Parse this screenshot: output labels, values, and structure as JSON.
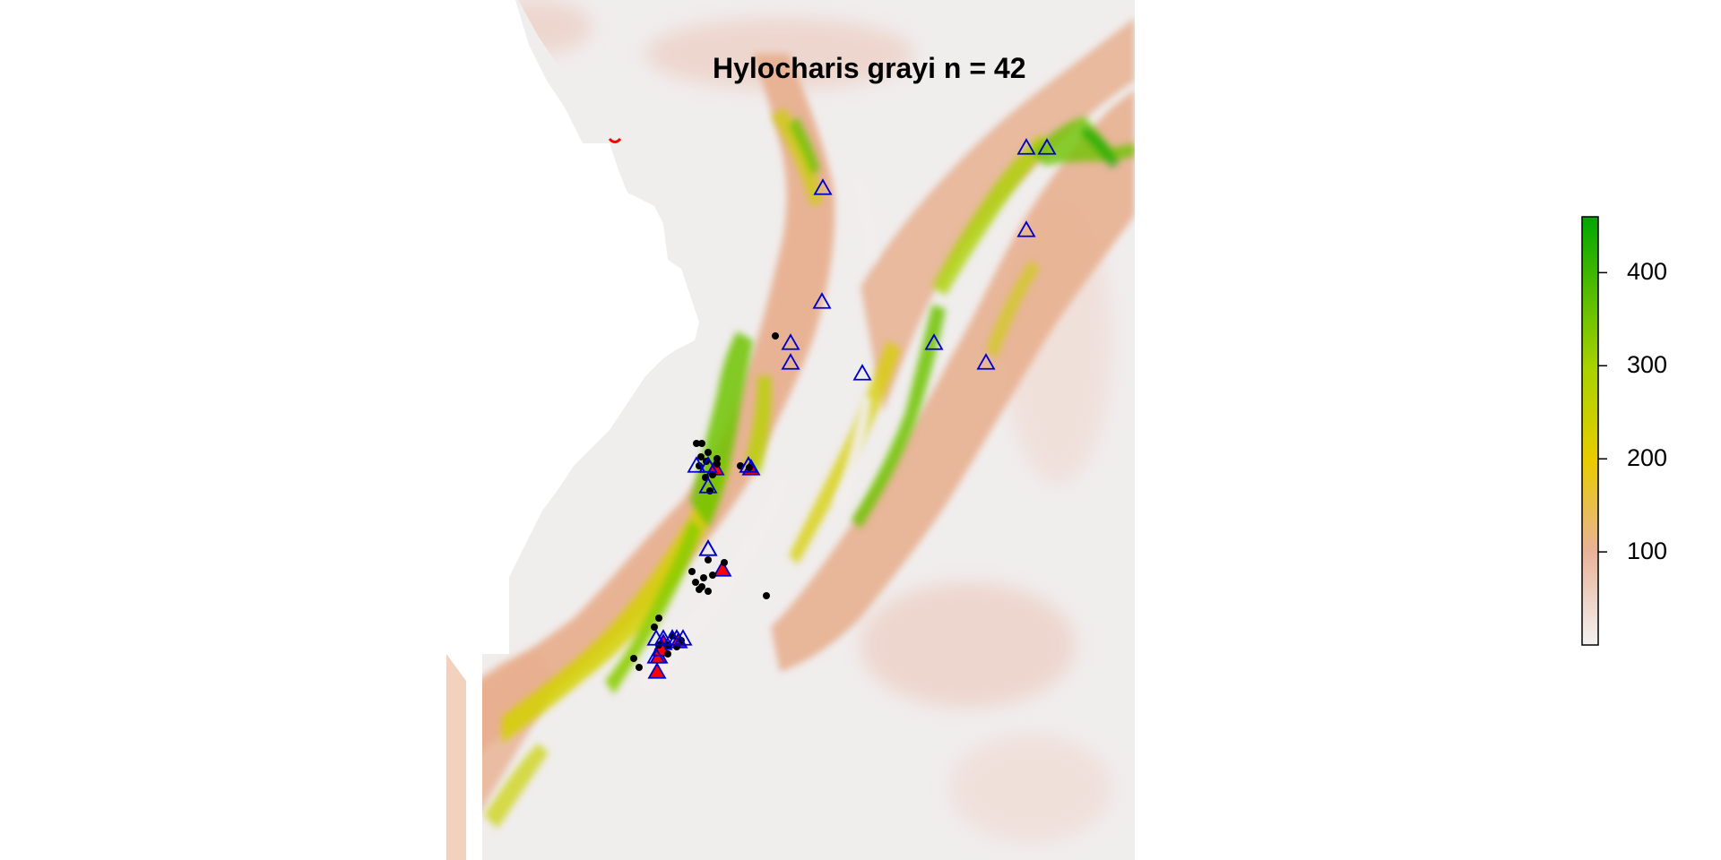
{
  "title": "Hylocharis grayi n = 42",
  "colors": {
    "low": "#f2f2f2",
    "mid_low": "#e9b298",
    "mid": "#e8cc00",
    "mid_high": "#a8d200",
    "high": "#00a600",
    "background_sea": "#ffffff",
    "triangle_outline": "#0000cc",
    "triangle_fill_red": "#ff0000",
    "dot": "#000000"
  },
  "legend": {
    "min": 0,
    "max": 460,
    "ticks": [
      {
        "value": 100,
        "label": "100"
      },
      {
        "value": 200,
        "label": "200"
      },
      {
        "value": 300,
        "label": "300"
      },
      {
        "value": 400,
        "label": "400"
      }
    ]
  },
  "markers": {
    "open_triangles": 24,
    "filled_triangles": 8,
    "dots": 34
  }
}
